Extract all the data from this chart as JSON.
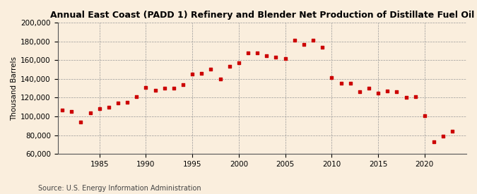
{
  "title": "Annual East Coast (PADD 1) Refinery and Blender Net Production of Distillate Fuel Oil",
  "ylabel": "Thousand Barrels",
  "source": "Source: U.S. Energy Information Administration",
  "background_color": "#faeedd",
  "marker_color": "#cc0000",
  "ylim": [
    60000,
    200000
  ],
  "yticks": [
    60000,
    80000,
    100000,
    120000,
    140000,
    160000,
    180000,
    200000
  ],
  "xlim": [
    1980.5,
    2024.5
  ],
  "xticks": [
    1985,
    1990,
    1995,
    2000,
    2005,
    2010,
    2015,
    2020
  ],
  "years": [
    1981,
    1982,
    1983,
    1984,
    1985,
    1986,
    1987,
    1988,
    1989,
    1990,
    1991,
    1992,
    1993,
    1994,
    1995,
    1996,
    1997,
    1998,
    1999,
    2000,
    2001,
    2002,
    2003,
    2004,
    2005,
    2006,
    2007,
    2008,
    2009,
    2010,
    2011,
    2012,
    2013,
    2014,
    2015,
    2016,
    2017,
    2018,
    2019,
    2020,
    2021,
    2022,
    2023
  ],
  "values": [
    107000,
    105000,
    94000,
    104000,
    108000,
    110000,
    114000,
    115000,
    121000,
    131000,
    128000,
    130000,
    130000,
    134000,
    145000,
    146000,
    150000,
    140000,
    153000,
    157000,
    168000,
    168000,
    165000,
    163000,
    162000,
    181000,
    177000,
    181000,
    174000,
    141000,
    135000,
    135000,
    126000,
    130000,
    125000,
    127000,
    126000,
    120000,
    121000,
    101000,
    73000,
    79000,
    84000
  ],
  "title_fontsize": 9,
  "label_fontsize": 7.5,
  "tick_fontsize": 7.5,
  "source_fontsize": 7
}
